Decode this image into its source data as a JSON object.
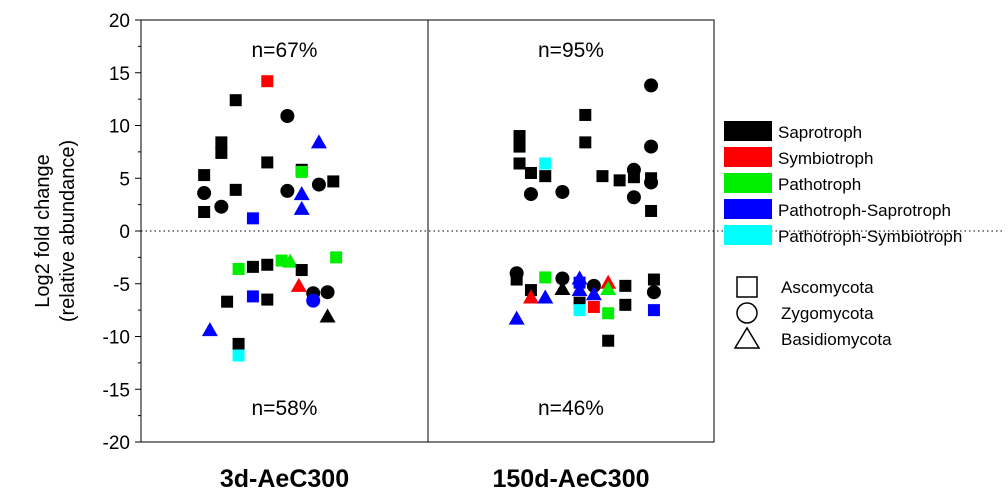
{
  "chart_data": {
    "type": "scatter",
    "ylabel_line1": "Log2 fold change",
    "ylabel_line2": "(relative abundance)",
    "ylim": [
      -20,
      20
    ],
    "yticks": [
      "20",
      "15",
      "10",
      "5",
      "0",
      "-5",
      "-10",
      "-15",
      "-20"
    ],
    "ytick_values": [
      20,
      15,
      10,
      5,
      0,
      -5,
      -10,
      -15,
      -20
    ],
    "zero_line": "dotted",
    "panels": [
      {
        "label": "3d-AeC300",
        "top_annotation": "n=67%",
        "bottom_annotation": "n=58%",
        "points": [
          {
            "x": 0.22,
            "y": 5.3,
            "g": "Saprotroph",
            "p": "Ascomycota"
          },
          {
            "x": 0.22,
            "y": 3.6,
            "g": "Saprotroph",
            "p": "Zygomycota"
          },
          {
            "x": 0.22,
            "y": 1.8,
            "g": "Saprotroph",
            "p": "Ascomycota"
          },
          {
            "x": 0.28,
            "y": 2.3,
            "g": "Saprotroph",
            "p": "Zygomycota"
          },
          {
            "x": 0.28,
            "y": 8.4,
            "g": "Saprotroph",
            "p": "Ascomycota"
          },
          {
            "x": 0.28,
            "y": 7.4,
            "g": "Saprotroph",
            "p": "Ascomycota"
          },
          {
            "x": 0.33,
            "y": 12.4,
            "g": "Saprotroph",
            "p": "Ascomycota"
          },
          {
            "x": 0.33,
            "y": 3.9,
            "g": "Saprotroph",
            "p": "Ascomycota"
          },
          {
            "x": 0.39,
            "y": 1.2,
            "g": "Pathotroph-Saprotroph",
            "p": "Ascomycota"
          },
          {
            "x": 0.44,
            "y": 14.2,
            "g": "Symbiotroph",
            "p": "Ascomycota"
          },
          {
            "x": 0.44,
            "y": 6.5,
            "g": "Saprotroph",
            "p": "Ascomycota"
          },
          {
            "x": 0.51,
            "y": 10.9,
            "g": "Saprotroph",
            "p": "Zygomycota"
          },
          {
            "x": 0.51,
            "y": 3.8,
            "g": "Saprotroph",
            "p": "Zygomycota"
          },
          {
            "x": 0.56,
            "y": 5.8,
            "g": "Saprotroph",
            "p": "Ascomycota"
          },
          {
            "x": 0.56,
            "y": 5.6,
            "g": "Pathotroph",
            "p": "Ascomycota"
          },
          {
            "x": 0.56,
            "y": 3.5,
            "g": "Pathotroph-Saprotroph",
            "p": "Basidiomycota"
          },
          {
            "x": 0.56,
            "y": 2.1,
            "g": "Pathotroph-Saprotroph",
            "p": "Basidiomycota"
          },
          {
            "x": 0.62,
            "y": 8.4,
            "g": "Pathotroph-Saprotroph",
            "p": "Basidiomycota"
          },
          {
            "x": 0.62,
            "y": 4.4,
            "g": "Saprotroph",
            "p": "Zygomycota"
          },
          {
            "x": 0.67,
            "y": 4.7,
            "g": "Saprotroph",
            "p": "Ascomycota"
          },
          {
            "x": 0.24,
            "y": -9.4,
            "g": "Pathotroph-Saprotroph",
            "p": "Basidiomycota"
          },
          {
            "x": 0.3,
            "y": -6.7,
            "g": "Saprotroph",
            "p": "Ascomycota"
          },
          {
            "x": 0.34,
            "y": -3.6,
            "g": "Pathotroph",
            "p": "Ascomycota"
          },
          {
            "x": 0.34,
            "y": -10.7,
            "g": "Saprotroph",
            "p": "Ascomycota"
          },
          {
            "x": 0.34,
            "y": -11.8,
            "g": "Pathotroph-Symbiotroph",
            "p": "Ascomycota"
          },
          {
            "x": 0.39,
            "y": -3.4,
            "g": "Saprotroph",
            "p": "Ascomycota"
          },
          {
            "x": 0.39,
            "y": -6.2,
            "g": "Pathotroph-Saprotroph",
            "p": "Ascomycota"
          },
          {
            "x": 0.44,
            "y": -3.2,
            "g": "Saprotroph",
            "p": "Ascomycota"
          },
          {
            "x": 0.44,
            "y": -6.5,
            "g": "Saprotroph",
            "p": "Ascomycota"
          },
          {
            "x": 0.49,
            "y": -2.8,
            "g": "Pathotroph",
            "p": "Ascomycota"
          },
          {
            "x": 0.52,
            "y": -2.9,
            "g": "Pathotroph",
            "p": "Basidiomycota"
          },
          {
            "x": 0.55,
            "y": -5.2,
            "g": "Symbiotroph",
            "p": "Basidiomycota"
          },
          {
            "x": 0.56,
            "y": -3.7,
            "g": "Saprotroph",
            "p": "Ascomycota"
          },
          {
            "x": 0.6,
            "y": -5.9,
            "g": "Saprotroph",
            "p": "Zygomycota"
          },
          {
            "x": 0.6,
            "y": -6.6,
            "g": "Pathotroph-Saprotroph",
            "p": "Zygomycota"
          },
          {
            "x": 0.65,
            "y": -5.8,
            "g": "Saprotroph",
            "p": "Zygomycota"
          },
          {
            "x": 0.65,
            "y": -8.1,
            "g": "Saprotroph",
            "p": "Basidiomycota"
          },
          {
            "x": 0.68,
            "y": -2.5,
            "g": "Pathotroph",
            "p": "Ascomycota"
          }
        ]
      },
      {
        "label": "150d-AeC300",
        "top_annotation": "n=95%",
        "bottom_annotation": "n=46%",
        "points": [
          {
            "x": 0.32,
            "y": 9.0,
            "g": "Saprotroph",
            "p": "Ascomycota"
          },
          {
            "x": 0.32,
            "y": 8.0,
            "g": "Saprotroph",
            "p": "Ascomycota"
          },
          {
            "x": 0.32,
            "y": 6.4,
            "g": "Saprotroph",
            "p": "Ascomycota"
          },
          {
            "x": 0.36,
            "y": 5.5,
            "g": "Saprotroph",
            "p": "Ascomycota"
          },
          {
            "x": 0.36,
            "y": 3.5,
            "g": "Saprotroph",
            "p": "Zygomycota"
          },
          {
            "x": 0.41,
            "y": 6.4,
            "g": "Pathotroph-Symbiotroph",
            "p": "Ascomycota"
          },
          {
            "x": 0.41,
            "y": 5.2,
            "g": "Saprotroph",
            "p": "Ascomycota"
          },
          {
            "x": 0.47,
            "y": 3.7,
            "g": "Saprotroph",
            "p": "Zygomycota"
          },
          {
            "x": 0.55,
            "y": 11.0,
            "g": "Saprotroph",
            "p": "Ascomycota"
          },
          {
            "x": 0.55,
            "y": 8.4,
            "g": "Saprotroph",
            "p": "Ascomycota"
          },
          {
            "x": 0.61,
            "y": 5.2,
            "g": "Saprotroph",
            "p": "Ascomycota"
          },
          {
            "x": 0.67,
            "y": 4.8,
            "g": "Saprotroph",
            "p": "Ascomycota"
          },
          {
            "x": 0.72,
            "y": 5.8,
            "g": "Saprotroph",
            "p": "Zygomycota"
          },
          {
            "x": 0.72,
            "y": 5.1,
            "g": "Saprotroph",
            "p": "Ascomycota"
          },
          {
            "x": 0.72,
            "y": 3.2,
            "g": "Saprotroph",
            "p": "Zygomycota"
          },
          {
            "x": 0.78,
            "y": 13.8,
            "g": "Saprotroph",
            "p": "Zygomycota"
          },
          {
            "x": 0.78,
            "y": 8.0,
            "g": "Saprotroph",
            "p": "Zygomycota"
          },
          {
            "x": 0.78,
            "y": 5.0,
            "g": "Saprotroph",
            "p": "Ascomycota"
          },
          {
            "x": 0.78,
            "y": 4.6,
            "g": "Saprotroph",
            "p": "Zygomycota"
          },
          {
            "x": 0.78,
            "y": 1.9,
            "g": "Saprotroph",
            "p": "Ascomycota"
          },
          {
            "x": 0.31,
            "y": -4.0,
            "g": "Saprotroph",
            "p": "Zygomycota"
          },
          {
            "x": 0.31,
            "y": -4.6,
            "g": "Saprotroph",
            "p": "Ascomycota"
          },
          {
            "x": 0.31,
            "y": -8.3,
            "g": "Pathotroph-Saprotroph",
            "p": "Basidiomycota"
          },
          {
            "x": 0.36,
            "y": -5.6,
            "g": "Saprotroph",
            "p": "Ascomycota"
          },
          {
            "x": 0.36,
            "y": -6.3,
            "g": "Symbiotroph",
            "p": "Basidiomycota"
          },
          {
            "x": 0.41,
            "y": -4.4,
            "g": "Pathotroph",
            "p": "Ascomycota"
          },
          {
            "x": 0.41,
            "y": -6.3,
            "g": "Pathotroph-Saprotroph",
            "p": "Basidiomycota"
          },
          {
            "x": 0.47,
            "y": -4.5,
            "g": "Saprotroph",
            "p": "Zygomycota"
          },
          {
            "x": 0.47,
            "y": -5.5,
            "g": "Saprotroph",
            "p": "Basidiomycota"
          },
          {
            "x": 0.53,
            "y": -4.9,
            "g": "Pathotroph-Saprotroph",
            "p": "Ascomycota"
          },
          {
            "x": 0.53,
            "y": -4.5,
            "g": "Pathotroph-Saprotroph",
            "p": "Basidiomycota"
          },
          {
            "x": 0.53,
            "y": -5.6,
            "g": "Pathotroph-Saprotroph",
            "p": "Basidiomycota"
          },
          {
            "x": 0.53,
            "y": -6.8,
            "g": "Saprotroph",
            "p": "Ascomycota"
          },
          {
            "x": 0.53,
            "y": -7.5,
            "g": "Pathotroph-Symbiotroph",
            "p": "Ascomycota"
          },
          {
            "x": 0.58,
            "y": -5.2,
            "g": "Saprotroph",
            "p": "Zygomycota"
          },
          {
            "x": 0.58,
            "y": -6.0,
            "g": "Pathotroph-Saprotroph",
            "p": "Basidiomycota"
          },
          {
            "x": 0.58,
            "y": -7.2,
            "g": "Symbiotroph",
            "p": "Ascomycota"
          },
          {
            "x": 0.63,
            "y": -4.9,
            "g": "Symbiotroph",
            "p": "Basidiomycota"
          },
          {
            "x": 0.63,
            "y": -5.5,
            "g": "Pathotroph",
            "p": "Basidiomycota"
          },
          {
            "x": 0.63,
            "y": -7.8,
            "g": "Pathotroph",
            "p": "Ascomycota"
          },
          {
            "x": 0.63,
            "y": -10.4,
            "g": "Saprotroph",
            "p": "Ascomycota"
          },
          {
            "x": 0.69,
            "y": -5.2,
            "g": "Saprotroph",
            "p": "Ascomycota"
          },
          {
            "x": 0.69,
            "y": -7.0,
            "g": "Saprotroph",
            "p": "Ascomycota"
          },
          {
            "x": 0.79,
            "y": -4.6,
            "g": "Saprotroph",
            "p": "Ascomycota"
          },
          {
            "x": 0.79,
            "y": -5.8,
            "g": "Saprotroph",
            "p": "Zygomycota"
          },
          {
            "x": 0.79,
            "y": -7.5,
            "g": "Pathotroph-Saprotroph",
            "p": "Ascomycota"
          }
        ]
      }
    ],
    "legend_placement": "right",
    "guild_legend": [
      {
        "name": "Saprotroph",
        "color": "#000000"
      },
      {
        "name": "Symbiotroph",
        "color": "#ff0000"
      },
      {
        "name": "Pathotroph",
        "color": "#00ee00"
      },
      {
        "name": "Pathotroph-Saprotroph",
        "color": "#0000ff"
      },
      {
        "name": "Pathotroph-Symbiotroph",
        "color": "#00ffff"
      }
    ],
    "phylum_legend": [
      {
        "name": "Ascomycota",
        "shape": "square"
      },
      {
        "name": "Zygomycota",
        "shape": "circle"
      },
      {
        "name": "Basidiomycota",
        "shape": "triangle"
      }
    ]
  }
}
